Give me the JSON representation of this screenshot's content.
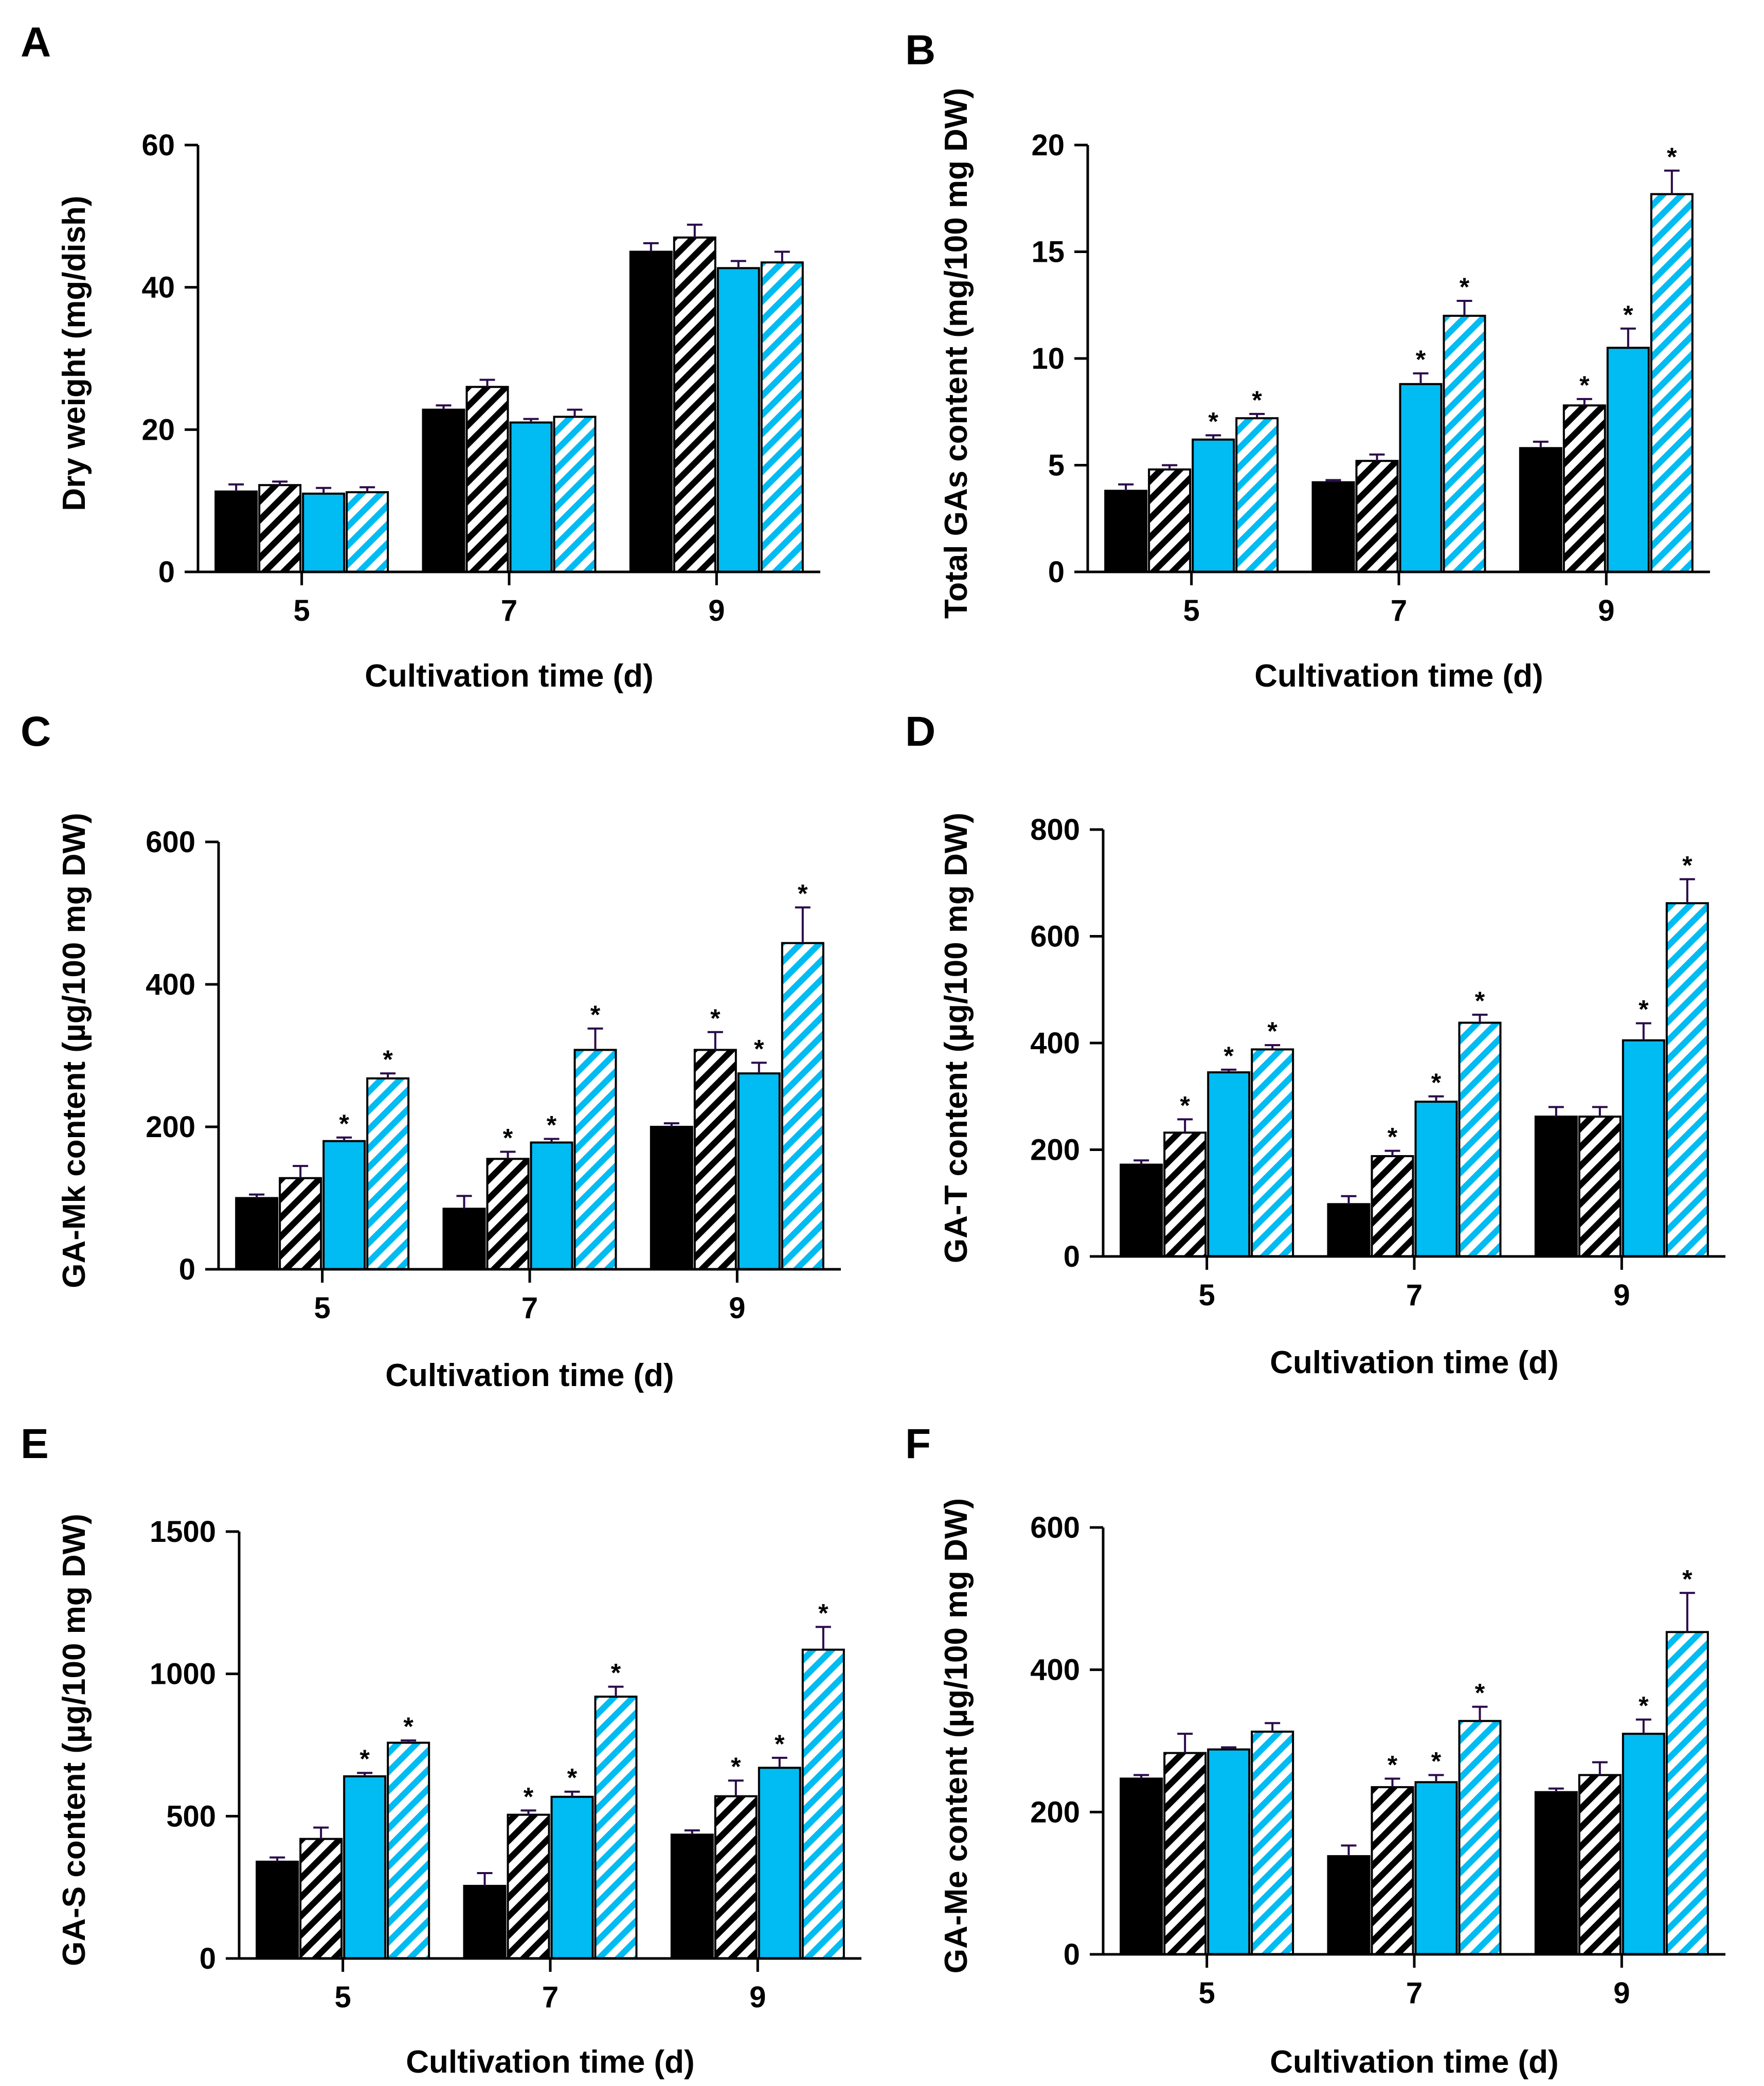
{
  "colors": {
    "black": "#000000",
    "blue": "#00bcf2",
    "axis": "#000000",
    "error": "#2a0a4a"
  },
  "series_styles": [
    {
      "fill": "solid",
      "color": "#000000"
    },
    {
      "fill": "hatch",
      "color": "#000000"
    },
    {
      "fill": "solid",
      "color": "#00bcf2"
    },
    {
      "fill": "hatch",
      "color": "#00bcf2"
    }
  ],
  "chart_data": [
    {
      "panel": "A",
      "type": "bar",
      "xlabel": "Cultivation time (d)",
      "ylabel": "Dry weight (mg/dish)",
      "categories": [
        "5",
        "7",
        "9"
      ],
      "ylim": [
        0,
        60
      ],
      "yticks": [
        0,
        20,
        40,
        60
      ],
      "series": [
        {
          "values": [
            11.3,
            22.8,
            45.0
          ],
          "errors": [
            1.0,
            0.6,
            1.2
          ],
          "stars": [
            false,
            false,
            false
          ]
        },
        {
          "values": [
            12.2,
            26.0,
            47.0
          ],
          "errors": [
            0.5,
            1.0,
            1.8
          ],
          "stars": [
            false,
            false,
            false
          ]
        },
        {
          "values": [
            11.0,
            21.0,
            42.7
          ],
          "errors": [
            0.8,
            0.5,
            1.0
          ],
          "stars": [
            false,
            false,
            false
          ]
        },
        {
          "values": [
            11.2,
            21.8,
            43.5
          ],
          "errors": [
            0.7,
            1.0,
            1.5
          ],
          "stars": [
            false,
            false,
            false
          ]
        }
      ]
    },
    {
      "panel": "B",
      "type": "bar",
      "xlabel": "Cultivation time (d)",
      "ylabel": "Total GAs content (mg/100 mg DW)",
      "categories": [
        "5",
        "7",
        "9"
      ],
      "ylim": [
        0,
        20
      ],
      "yticks": [
        0,
        5,
        10,
        15,
        20
      ],
      "series": [
        {
          "values": [
            3.8,
            4.2,
            5.8
          ],
          "errors": [
            0.3,
            0.1,
            0.3
          ],
          "stars": [
            false,
            false,
            false
          ]
        },
        {
          "values": [
            4.8,
            5.2,
            7.8
          ],
          "errors": [
            0.2,
            0.3,
            0.3
          ],
          "stars": [
            false,
            false,
            true
          ]
        },
        {
          "values": [
            6.2,
            8.8,
            10.5
          ],
          "errors": [
            0.2,
            0.5,
            0.9
          ],
          "stars": [
            true,
            true,
            true
          ]
        },
        {
          "values": [
            7.2,
            12.0,
            17.7
          ],
          "errors": [
            0.2,
            0.7,
            1.1
          ],
          "stars": [
            true,
            true,
            true
          ]
        }
      ]
    },
    {
      "panel": "C",
      "type": "bar",
      "xlabel": "Cultivation time (d)",
      "ylabel": "GA-Mk content (µg/100 mg DW)",
      "categories": [
        "5",
        "7",
        "9"
      ],
      "ylim": [
        0,
        600
      ],
      "yticks": [
        0,
        200,
        400,
        600
      ],
      "series": [
        {
          "values": [
            100,
            85,
            200
          ],
          "errors": [
            5,
            18,
            5
          ],
          "stars": [
            false,
            false,
            false
          ]
        },
        {
          "values": [
            128,
            155,
            308
          ],
          "errors": [
            17,
            10,
            25
          ],
          "stars": [
            false,
            true,
            true
          ]
        },
        {
          "values": [
            180,
            178,
            275
          ],
          "errors": [
            5,
            5,
            15
          ],
          "stars": [
            true,
            true,
            true
          ]
        },
        {
          "values": [
            268,
            308,
            458
          ],
          "errors": [
            7,
            30,
            50
          ],
          "stars": [
            true,
            true,
            true
          ]
        }
      ]
    },
    {
      "panel": "D",
      "type": "bar",
      "xlabel": "Cultivation time (d)",
      "ylabel": "GA-T content (µg/100 mg DW)",
      "categories": [
        "5",
        "7",
        "9"
      ],
      "ylim": [
        0,
        800
      ],
      "yticks": [
        0,
        200,
        400,
        600,
        800
      ],
      "series": [
        {
          "values": [
            172,
            98,
            262
          ],
          "errors": [
            8,
            15,
            18
          ],
          "stars": [
            false,
            false,
            false
          ]
        },
        {
          "values": [
            232,
            188,
            262
          ],
          "errors": [
            25,
            10,
            18
          ],
          "stars": [
            true,
            true,
            false
          ]
        },
        {
          "values": [
            345,
            290,
            405
          ],
          "errors": [
            5,
            10,
            32
          ],
          "stars": [
            true,
            true,
            true
          ]
        },
        {
          "values": [
            388,
            438,
            662
          ],
          "errors": [
            8,
            15,
            45
          ],
          "stars": [
            true,
            true,
            true
          ]
        }
      ]
    },
    {
      "panel": "E",
      "type": "bar",
      "xlabel": "Cultivation time (d)",
      "ylabel": "GA-S content (µg/100 mg DW)",
      "categories": [
        "5",
        "7",
        "9"
      ],
      "ylim": [
        0,
        1500
      ],
      "yticks": [
        0,
        500,
        1000,
        1500
      ],
      "series": [
        {
          "values": [
            340,
            255,
            435
          ],
          "errors": [
            15,
            45,
            15
          ],
          "stars": [
            false,
            false,
            false
          ]
        },
        {
          "values": [
            420,
            505,
            570
          ],
          "errors": [
            40,
            15,
            55
          ],
          "stars": [
            false,
            true,
            true
          ]
        },
        {
          "values": [
            640,
            568,
            670
          ],
          "errors": [
            12,
            18,
            35
          ],
          "stars": [
            true,
            true,
            true
          ]
        },
        {
          "values": [
            758,
            920,
            1085
          ],
          "errors": [
            8,
            35,
            80
          ],
          "stars": [
            true,
            true,
            true
          ]
        }
      ]
    },
    {
      "panel": "F",
      "type": "bar",
      "xlabel": "Cultivation time (d)",
      "ylabel": "GA-Me content (µg/100 mg DW)",
      "categories": [
        "5",
        "7",
        "9"
      ],
      "ylim": [
        0,
        600
      ],
      "yticks": [
        0,
        200,
        400,
        600
      ],
      "series": [
        {
          "values": [
            247,
            138,
            228
          ],
          "errors": [
            5,
            15,
            5
          ],
          "stars": [
            false,
            false,
            false
          ]
        },
        {
          "values": [
            283,
            235,
            252
          ],
          "errors": [
            27,
            12,
            18
          ],
          "stars": [
            false,
            true,
            false
          ]
        },
        {
          "values": [
            288,
            242,
            310
          ],
          "errors": [
            3,
            10,
            20
          ],
          "stars": [
            false,
            true,
            true
          ]
        },
        {
          "values": [
            313,
            328,
            453
          ],
          "errors": [
            12,
            20,
            55
          ],
          "stars": [
            false,
            true,
            true
          ]
        }
      ]
    }
  ]
}
